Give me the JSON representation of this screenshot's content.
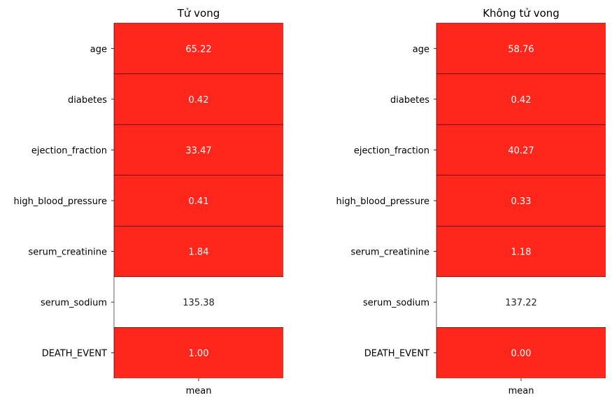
{
  "colors": {
    "high": "#ff261c",
    "low": "#ffffff",
    "high_text": "#ffffff",
    "low_text": "#262626"
  },
  "chart_data": [
    {
      "type": "heatmap",
      "title": "Tử vong",
      "columns": [
        "mean"
      ],
      "rows": [
        "age",
        "diabetes",
        "ejection_fraction",
        "high_blood_pressure",
        "serum_creatinine",
        "serum_sodium",
        "DEATH_EVENT"
      ],
      "values": [
        65.22,
        0.42,
        33.47,
        0.41,
        1.84,
        135.38,
        1.0
      ],
      "cell_labels": [
        "65.22",
        "0.42",
        "33.47",
        "0.41",
        "1.84",
        "135.38",
        "1.00"
      ],
      "highlight": [
        true,
        true,
        true,
        true,
        true,
        false,
        true
      ],
      "colorbar": false
    },
    {
      "type": "heatmap",
      "title": "Không tử vong",
      "columns": [
        "mean"
      ],
      "rows": [
        "age",
        "diabetes",
        "ejection_fraction",
        "high_blood_pressure",
        "serum_creatinine",
        "serum_sodium",
        "DEATH_EVENT"
      ],
      "values": [
        58.76,
        0.42,
        40.27,
        0.33,
        1.18,
        137.22,
        0.0
      ],
      "cell_labels": [
        "58.76",
        "0.42",
        "40.27",
        "0.33",
        "1.18",
        "137.22",
        "0.00"
      ],
      "highlight": [
        true,
        true,
        true,
        true,
        true,
        false,
        true
      ],
      "colorbar": false
    }
  ]
}
